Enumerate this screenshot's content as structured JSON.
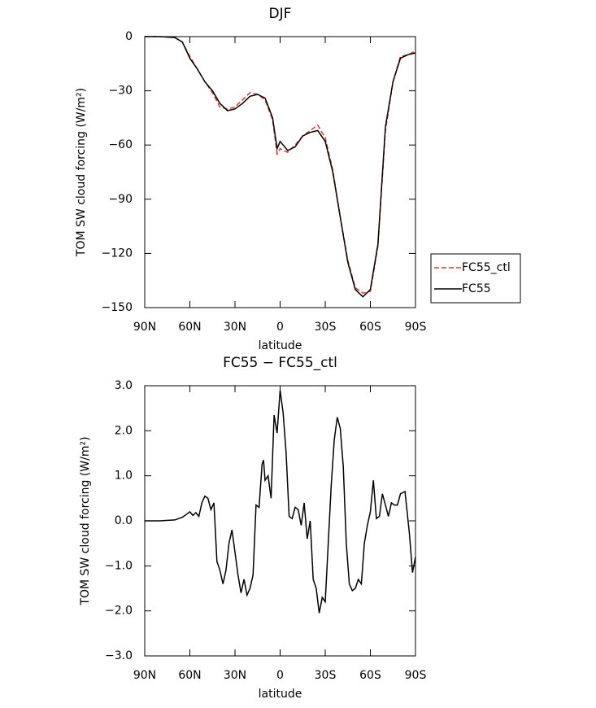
{
  "chart_data": [
    {
      "type": "line",
      "title": "DJF",
      "xlabel": "latitude",
      "ylabel": "TOM SW cloud forcing (W/m²)",
      "x": [
        90,
        80,
        70,
        65,
        60,
        55,
        50,
        45,
        40,
        35,
        30,
        25,
        20,
        15,
        10,
        5,
        2,
        0,
        -2,
        -5,
        -10,
        -15,
        -20,
        -25,
        -30,
        -35,
        -40,
        -45,
        -50,
        -55,
        -60,
        -65,
        -70,
        -75,
        -80,
        -85,
        -90
      ],
      "series": [
        {
          "name": "FC55_ctl",
          "color": "#e8322d",
          "dashed": true,
          "values": [
            0,
            0,
            -0.5,
            -3,
            -11,
            -18,
            -25,
            -31,
            -39,
            -40,
            -39,
            -35,
            -31,
            -32,
            -35,
            -46,
            -65,
            -62,
            -63,
            -64,
            -60,
            -55,
            -52,
            -49,
            -56,
            -74,
            -100,
            -124,
            -139,
            -142,
            -141,
            -116,
            -52,
            -25,
            -11,
            -10,
            -8
          ]
        },
        {
          "name": "FC55",
          "color": "#000000",
          "dashed": false,
          "values": [
            0,
            0,
            -0.5,
            -3,
            -12,
            -18,
            -25,
            -30,
            -37,
            -41,
            -40,
            -37,
            -33,
            -32,
            -34,
            -45,
            -62,
            -58,
            -60,
            -63,
            -61,
            -55,
            -53,
            -52,
            -58,
            -75,
            -100,
            -125,
            -140,
            -144,
            -140,
            -115,
            -50,
            -25,
            -12,
            -10,
            -9
          ]
        }
      ],
      "xlim": [
        90,
        -90
      ],
      "xticks": [
        {
          "value": 90,
          "label": "90N"
        },
        {
          "value": 60,
          "label": "60N"
        },
        {
          "value": 30,
          "label": "30N"
        },
        0,
        {
          "value": -30,
          "label": "30S"
        },
        {
          "value": -60,
          "label": "60S"
        },
        {
          "value": -90,
          "label": "90S"
        }
      ],
      "ylim": [
        -150,
        0
      ],
      "yticks": [
        0,
        {
          "value": -30,
          "label": "−30"
        },
        {
          "value": -60,
          "label": "−60"
        },
        {
          "value": -90,
          "label": "−90"
        },
        {
          "value": -120,
          "label": "−120"
        },
        {
          "value": -150,
          "label": "−150"
        }
      ],
      "legend": "right"
    },
    {
      "type": "line",
      "title": "FC55 − FC55_ctl",
      "xlabel": "latitude",
      "ylabel": "TOM SW cloud forcing (W/m²)",
      "x": [
        90,
        80,
        70,
        65,
        62,
        60,
        58,
        56,
        54,
        52,
        50,
        48,
        46,
        44,
        42,
        40,
        38,
        36,
        34,
        32,
        30,
        28,
        26,
        24,
        22,
        20,
        18,
        16,
        14,
        12,
        11,
        10,
        8,
        6,
        4,
        2,
        0,
        -2,
        -4,
        -6,
        -8,
        -10,
        -12,
        -14,
        -16,
        -18,
        -20,
        -22,
        -24,
        -26,
        -28,
        -30,
        -32,
        -34,
        -36,
        -38,
        -40,
        -42,
        -44,
        -46,
        -48,
        -50,
        -52,
        -54,
        -56,
        -58,
        -60,
        -62,
        -64,
        -66,
        -68,
        -70,
        -72,
        -74,
        -76,
        -78,
        -80,
        -83,
        -86,
        -88,
        -90
      ],
      "color": "#000000",
      "values": [
        0,
        0,
        0.02,
        0.08,
        0.15,
        0.2,
        0.12,
        0.18,
        0.1,
        0.4,
        0.55,
        0.5,
        0.25,
        0.4,
        -0.9,
        -1.1,
        -1.4,
        -1.1,
        -0.5,
        -0.2,
        -0.7,
        -1.2,
        -1.6,
        -1.3,
        -1.65,
        -1.5,
        -1.2,
        0.35,
        0.3,
        1.25,
        1.35,
        0.9,
        1.0,
        0.5,
        2.35,
        1.95,
        2.9,
        2.4,
        1.5,
        0.1,
        0.05,
        0.3,
        0.25,
        -0.1,
        0.4,
        -0.4,
        0.0,
        -1.3,
        -1.5,
        -2.05,
        -1.7,
        -1.8,
        -0.5,
        0.8,
        1.8,
        2.3,
        2.05,
        1.2,
        -0.5,
        -1.4,
        -1.55,
        -1.5,
        -1.3,
        -1.4,
        -0.5,
        -0.1,
        0.2,
        0.9,
        0.05,
        0.1,
        0.6,
        0.35,
        0.1,
        0.4,
        0.35,
        0.35,
        0.6,
        0.65,
        -0.3,
        -1.15,
        -0.8
      ],
      "xlim": [
        90,
        -90
      ],
      "xticks": [
        {
          "value": 90,
          "label": "90N"
        },
        {
          "value": 60,
          "label": "60N"
        },
        {
          "value": 30,
          "label": "30N"
        },
        0,
        {
          "value": -30,
          "label": "30S"
        },
        {
          "value": -60,
          "label": "60S"
        },
        {
          "value": -90,
          "label": "90S"
        }
      ],
      "ylim": [
        -3,
        3
      ],
      "yticks": [
        {
          "value": 3,
          "label": "3.0"
        },
        {
          "value": 2,
          "label": "2.0"
        },
        {
          "value": 1,
          "label": "1.0"
        },
        {
          "value": 0,
          "label": "0.0"
        },
        {
          "value": -1,
          "label": "−1.0"
        },
        {
          "value": -2,
          "label": "−2.0"
        },
        {
          "value": -3,
          "label": "−3.0"
        }
      ]
    }
  ]
}
